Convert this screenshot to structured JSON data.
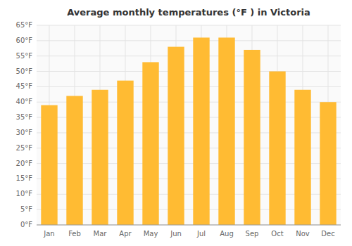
{
  "chart_data": {
    "type": "bar",
    "title": "Average monthly temperatures (°F ) in Victoria",
    "categories": [
      "Jan",
      "Feb",
      "Mar",
      "Apr",
      "May",
      "Jun",
      "Jul",
      "Aug",
      "Sep",
      "Oct",
      "Nov",
      "Dec"
    ],
    "values": [
      39,
      42,
      44,
      47,
      53,
      58,
      61,
      61,
      57,
      50,
      44,
      40
    ],
    "color": "#FFBB33",
    "ylim": [
      0,
      65
    ],
    "yticks": [
      {
        "value": 0,
        "label": "0°F"
      },
      {
        "value": 5,
        "label": "5°F"
      },
      {
        "value": 10,
        "label": "10°F"
      },
      {
        "value": 15,
        "label": "15°F"
      },
      {
        "value": 20,
        "label": "20°F"
      },
      {
        "value": 25,
        "label": "25°F"
      },
      {
        "value": 30,
        "label": "30°F"
      },
      {
        "value": 35,
        "label": "35°F"
      },
      {
        "value": 40,
        "label": "40°F"
      },
      {
        "value": 45,
        "label": "45°F"
      },
      {
        "value": 50,
        "label": "50°F"
      },
      {
        "value": 55,
        "label": "55°F"
      },
      {
        "value": 60,
        "label": "60°F"
      },
      {
        "value": 65,
        "label": "65°F"
      }
    ],
    "grid": true
  }
}
